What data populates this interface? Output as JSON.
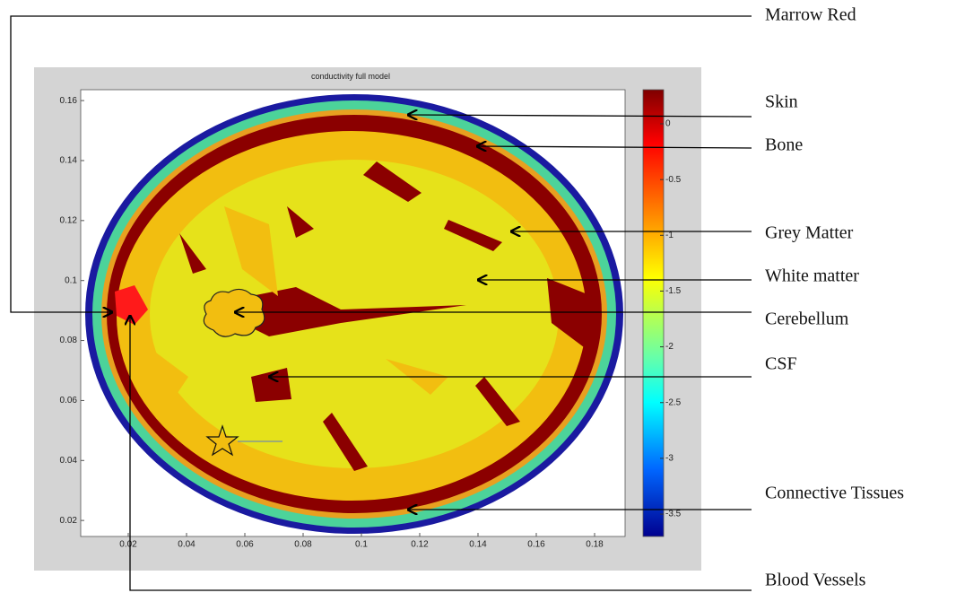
{
  "title": "conductivity full model",
  "x_ticks": [
    0.02,
    0.04,
    0.06,
    0.08,
    0.1,
    0.12,
    0.14,
    0.16,
    0.18
  ],
  "y_ticks": [
    0.02,
    0.04,
    0.06,
    0.08,
    0.1,
    0.12,
    0.14,
    0.16
  ],
  "colorbar_ticks": [
    0,
    -0.5,
    -1,
    -1.5,
    -2,
    -2.5,
    -3,
    -3.5
  ],
  "labels": [
    "Marrow Red",
    "Skin",
    "Bone",
    "Grey Matter",
    "White matter",
    "Cerebellum",
    "CSF",
    "Connective Tissues",
    "Blood Vessels"
  ]
}
